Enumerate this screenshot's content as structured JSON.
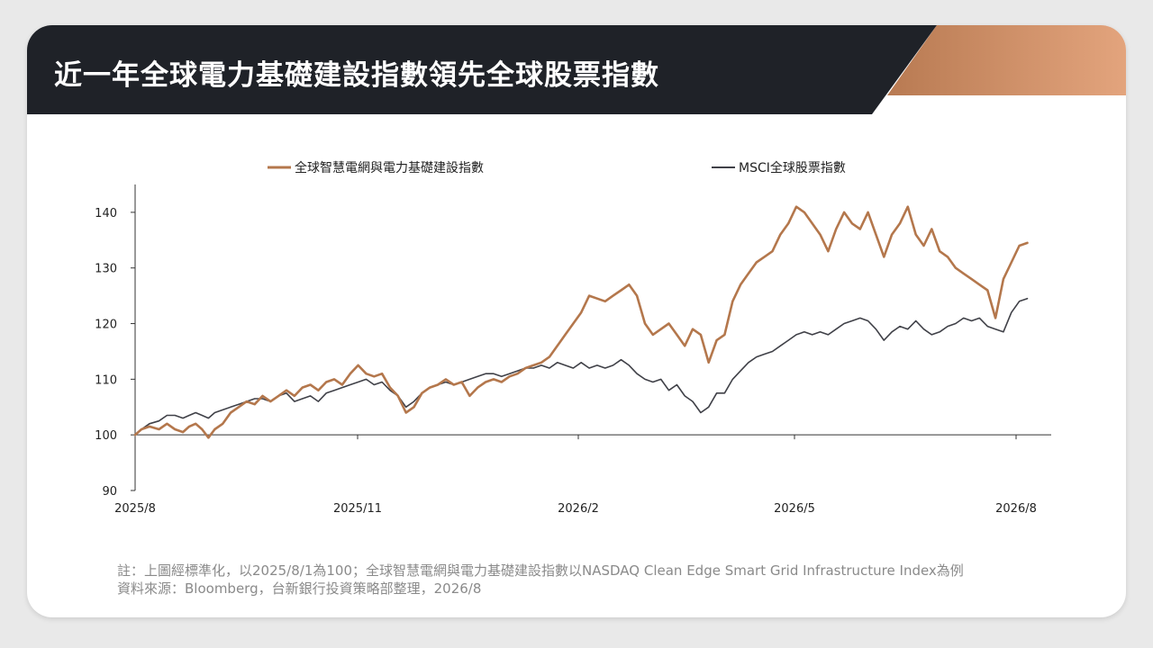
{
  "title": "近一年全球電力基礎建設指數領先全球股票指數",
  "colors": {
    "header_dark": "#1f2228",
    "header_accent_start": "#b87a52",
    "header_accent_end": "#e3a47d",
    "series_grid": "#b4774c",
    "series_msci": "#404148",
    "axis": "#333333"
  },
  "chart_data": {
    "type": "line",
    "x_tick_labels": [
      "2025/8",
      "2025/11",
      "2026/2",
      "2026/5",
      "2026/8"
    ],
    "y_ticks": [
      90,
      100,
      110,
      120,
      130,
      140
    ],
    "ylim": [
      90,
      145
    ],
    "baseline": 100,
    "legend_position": "top",
    "grid": false,
    "series": [
      {
        "name": "全球智慧電網與電力基礎建設指數",
        "color": "#b4774c",
        "values": [
          100,
          101,
          102,
          101.5,
          102,
          101,
          100,
          102,
          101,
          99.5,
          101.5,
          103,
          104,
          105,
          106,
          107,
          106,
          106.5,
          107,
          108,
          109,
          107,
          108,
          109.5,
          110,
          109,
          111,
          112.5,
          111,
          110,
          111,
          108,
          107,
          104,
          105,
          108,
          109,
          109.5,
          110,
          109,
          108.5,
          107,
          108.5,
          109.5,
          110,
          109.5,
          110.5,
          111,
          112,
          112.5,
          113,
          114,
          116,
          118,
          120,
          123,
          125,
          124.5,
          124,
          126,
          127,
          125,
          120,
          118,
          119,
          120,
          118,
          116,
          119,
          118,
          113,
          117,
          118,
          124,
          127,
          129,
          131,
          132,
          133,
          136,
          138,
          141,
          140,
          138,
          136,
          133,
          137,
          140,
          138,
          137,
          140,
          136,
          132,
          136,
          138,
          141,
          136,
          134,
          137,
          133,
          132,
          130,
          129,
          128,
          127,
          126,
          121,
          128,
          131,
          134,
          134.5
        ],
        "points": [
          [
            0,
            100
          ],
          [
            0.4,
            101
          ],
          [
            0.9,
            101.5
          ],
          [
            1.5,
            101
          ],
          [
            2,
            102
          ],
          [
            2.5,
            101
          ],
          [
            3,
            100.5
          ],
          [
            3.4,
            101.5
          ],
          [
            3.8,
            102
          ],
          [
            4.2,
            101
          ],
          [
            4.6,
            99.5
          ],
          [
            5,
            101
          ],
          [
            5.5,
            102
          ],
          [
            6,
            104
          ],
          [
            6.5,
            105
          ],
          [
            7,
            106
          ],
          [
            7.5,
            105.5
          ],
          [
            8,
            107
          ],
          [
            8.5,
            106
          ],
          [
            9,
            107
          ],
          [
            9.5,
            108
          ],
          [
            10,
            107
          ],
          [
            10.5,
            108.5
          ],
          [
            11,
            109
          ],
          [
            11.5,
            108
          ],
          [
            12,
            109.5
          ],
          [
            12.5,
            110
          ],
          [
            13,
            109
          ],
          [
            13.5,
            111
          ],
          [
            14,
            112.5
          ],
          [
            14.5,
            111
          ],
          [
            15,
            110.5
          ],
          [
            15.5,
            111
          ],
          [
            16,
            108.5
          ],
          [
            16.5,
            107
          ],
          [
            17,
            104
          ],
          [
            17.5,
            105
          ],
          [
            18,
            107.5
          ],
          [
            18.5,
            108.5
          ],
          [
            19,
            109
          ],
          [
            19.5,
            110
          ],
          [
            20,
            109
          ],
          [
            20.5,
            109.5
          ],
          [
            21,
            107
          ],
          [
            21.5,
            108.5
          ],
          [
            22,
            109.5
          ],
          [
            22.5,
            110
          ],
          [
            23,
            109.5
          ],
          [
            23.5,
            110.5
          ],
          [
            24,
            111
          ],
          [
            24.5,
            112
          ],
          [
            25,
            112.5
          ],
          [
            25.5,
            113
          ],
          [
            26,
            114
          ],
          [
            26.5,
            116
          ],
          [
            27,
            118
          ],
          [
            27.5,
            120
          ],
          [
            28,
            122
          ],
          [
            28.5,
            125
          ],
          [
            29,
            124.5
          ],
          [
            29.5,
            124
          ],
          [
            30,
            125
          ],
          [
            30.5,
            126
          ],
          [
            31,
            127
          ],
          [
            31.5,
            125
          ],
          [
            32,
            120
          ],
          [
            32.5,
            118
          ],
          [
            33,
            119
          ],
          [
            33.5,
            120
          ],
          [
            34,
            118
          ],
          [
            34.5,
            116
          ],
          [
            35,
            119
          ],
          [
            35.5,
            118
          ],
          [
            36,
            113
          ],
          [
            36.5,
            117
          ],
          [
            37,
            118
          ],
          [
            37.5,
            124
          ],
          [
            38,
            127
          ],
          [
            38.5,
            129
          ],
          [
            39,
            131
          ],
          [
            39.5,
            132
          ],
          [
            40,
            133
          ],
          [
            40.5,
            136
          ],
          [
            41,
            138
          ],
          [
            41.5,
            141
          ],
          [
            42,
            140
          ],
          [
            42.5,
            138
          ],
          [
            43,
            136
          ],
          [
            43.5,
            133
          ],
          [
            44,
            137
          ],
          [
            44.5,
            140
          ],
          [
            45,
            138
          ],
          [
            45.5,
            137
          ],
          [
            46,
            140
          ],
          [
            46.5,
            136
          ],
          [
            47,
            132
          ],
          [
            47.5,
            136
          ],
          [
            48,
            138
          ],
          [
            48.5,
            141
          ],
          [
            49,
            136
          ],
          [
            49.5,
            134
          ],
          [
            50,
            137
          ],
          [
            50.5,
            133
          ],
          [
            51,
            132
          ],
          [
            51.5,
            130
          ],
          [
            52,
            129
          ],
          [
            52.5,
            128
          ],
          [
            53,
            127
          ],
          [
            53.5,
            126
          ],
          [
            54,
            121
          ],
          [
            54.5,
            128
          ],
          [
            55,
            131
          ],
          [
            55.5,
            134
          ],
          [
            56,
            134.5
          ]
        ]
      },
      {
        "name": "MSCI全球股票指數",
        "color": "#404148",
        "points": [
          [
            0,
            100
          ],
          [
            0.4,
            101
          ],
          [
            0.9,
            102
          ],
          [
            1.5,
            102.5
          ],
          [
            2,
            103.5
          ],
          [
            2.5,
            103.5
          ],
          [
            3,
            103
          ],
          [
            3.4,
            103.5
          ],
          [
            3.8,
            104
          ],
          [
            4.2,
            103.5
          ],
          [
            4.6,
            103
          ],
          [
            5,
            104
          ],
          [
            5.5,
            104.5
          ],
          [
            6,
            105
          ],
          [
            6.5,
            105.5
          ],
          [
            7,
            106
          ],
          [
            7.5,
            106.5
          ],
          [
            8,
            106.5
          ],
          [
            8.5,
            106
          ],
          [
            9,
            107
          ],
          [
            9.5,
            107.5
          ],
          [
            10,
            106
          ],
          [
            10.5,
            106.5
          ],
          [
            11,
            107
          ],
          [
            11.5,
            106
          ],
          [
            12,
            107.5
          ],
          [
            12.5,
            108
          ],
          [
            13,
            108.5
          ],
          [
            13.5,
            109
          ],
          [
            14,
            109.5
          ],
          [
            14.5,
            110
          ],
          [
            15,
            109
          ],
          [
            15.5,
            109.5
          ],
          [
            16,
            108
          ],
          [
            16.5,
            107
          ],
          [
            17,
            105
          ],
          [
            17.5,
            106
          ],
          [
            18,
            107.5
          ],
          [
            18.5,
            108.5
          ],
          [
            19,
            109
          ],
          [
            19.5,
            109.5
          ],
          [
            20,
            109
          ],
          [
            20.5,
            109.5
          ],
          [
            21,
            110
          ],
          [
            21.5,
            110.5
          ],
          [
            22,
            111
          ],
          [
            22.5,
            111
          ],
          [
            23,
            110.5
          ],
          [
            23.5,
            111
          ],
          [
            24,
            111.5
          ],
          [
            24.5,
            112
          ],
          [
            25,
            112
          ],
          [
            25.5,
            112.5
          ],
          [
            26,
            112
          ],
          [
            26.5,
            113
          ],
          [
            27,
            112.5
          ],
          [
            27.5,
            112
          ],
          [
            28,
            113
          ],
          [
            28.5,
            112
          ],
          [
            29,
            112.5
          ],
          [
            29.5,
            112
          ],
          [
            30,
            112.5
          ],
          [
            30.5,
            113.5
          ],
          [
            31,
            112.5
          ],
          [
            31.5,
            111
          ],
          [
            32,
            110
          ],
          [
            32.5,
            109.5
          ],
          [
            33,
            110
          ],
          [
            33.5,
            108
          ],
          [
            34,
            109
          ],
          [
            34.5,
            107
          ],
          [
            35,
            106
          ],
          [
            35.5,
            104
          ],
          [
            36,
            105
          ],
          [
            36.5,
            107.5
          ],
          [
            37,
            107.5
          ],
          [
            37.5,
            110
          ],
          [
            38,
            111.5
          ],
          [
            38.5,
            113
          ],
          [
            39,
            114
          ],
          [
            39.5,
            114.5
          ],
          [
            40,
            115
          ],
          [
            40.5,
            116
          ],
          [
            41,
            117
          ],
          [
            41.5,
            118
          ],
          [
            42,
            118.5
          ],
          [
            42.5,
            118
          ],
          [
            43,
            118.5
          ],
          [
            43.5,
            118
          ],
          [
            44,
            119
          ],
          [
            44.5,
            120
          ],
          [
            45,
            120.5
          ],
          [
            45.5,
            121
          ],
          [
            46,
            120.5
          ],
          [
            46.5,
            119
          ],
          [
            47,
            117
          ],
          [
            47.5,
            118.5
          ],
          [
            48,
            119.5
          ],
          [
            48.5,
            119
          ],
          [
            49,
            120.5
          ],
          [
            49.5,
            119
          ],
          [
            50,
            118
          ],
          [
            50.5,
            118.5
          ],
          [
            51,
            119.5
          ],
          [
            51.5,
            120
          ],
          [
            52,
            121
          ],
          [
            52.5,
            120.5
          ],
          [
            53,
            121
          ],
          [
            53.5,
            119.5
          ],
          [
            54,
            119
          ],
          [
            54.5,
            118.5
          ],
          [
            55,
            122
          ],
          [
            55.5,
            124
          ],
          [
            56,
            124.5
          ]
        ]
      }
    ],
    "x_range": [
      0,
      57.5
    ]
  },
  "footnote": {
    "line1": "註：上圖經標準化，以2025/8/1為100；全球智慧電網與電力基礎建設指數以NASDAQ Clean Edge Smart Grid Infrastructure Index為例",
    "line2": "資料來源：Bloomberg，台新銀行投資策略部整理，2026/8"
  }
}
